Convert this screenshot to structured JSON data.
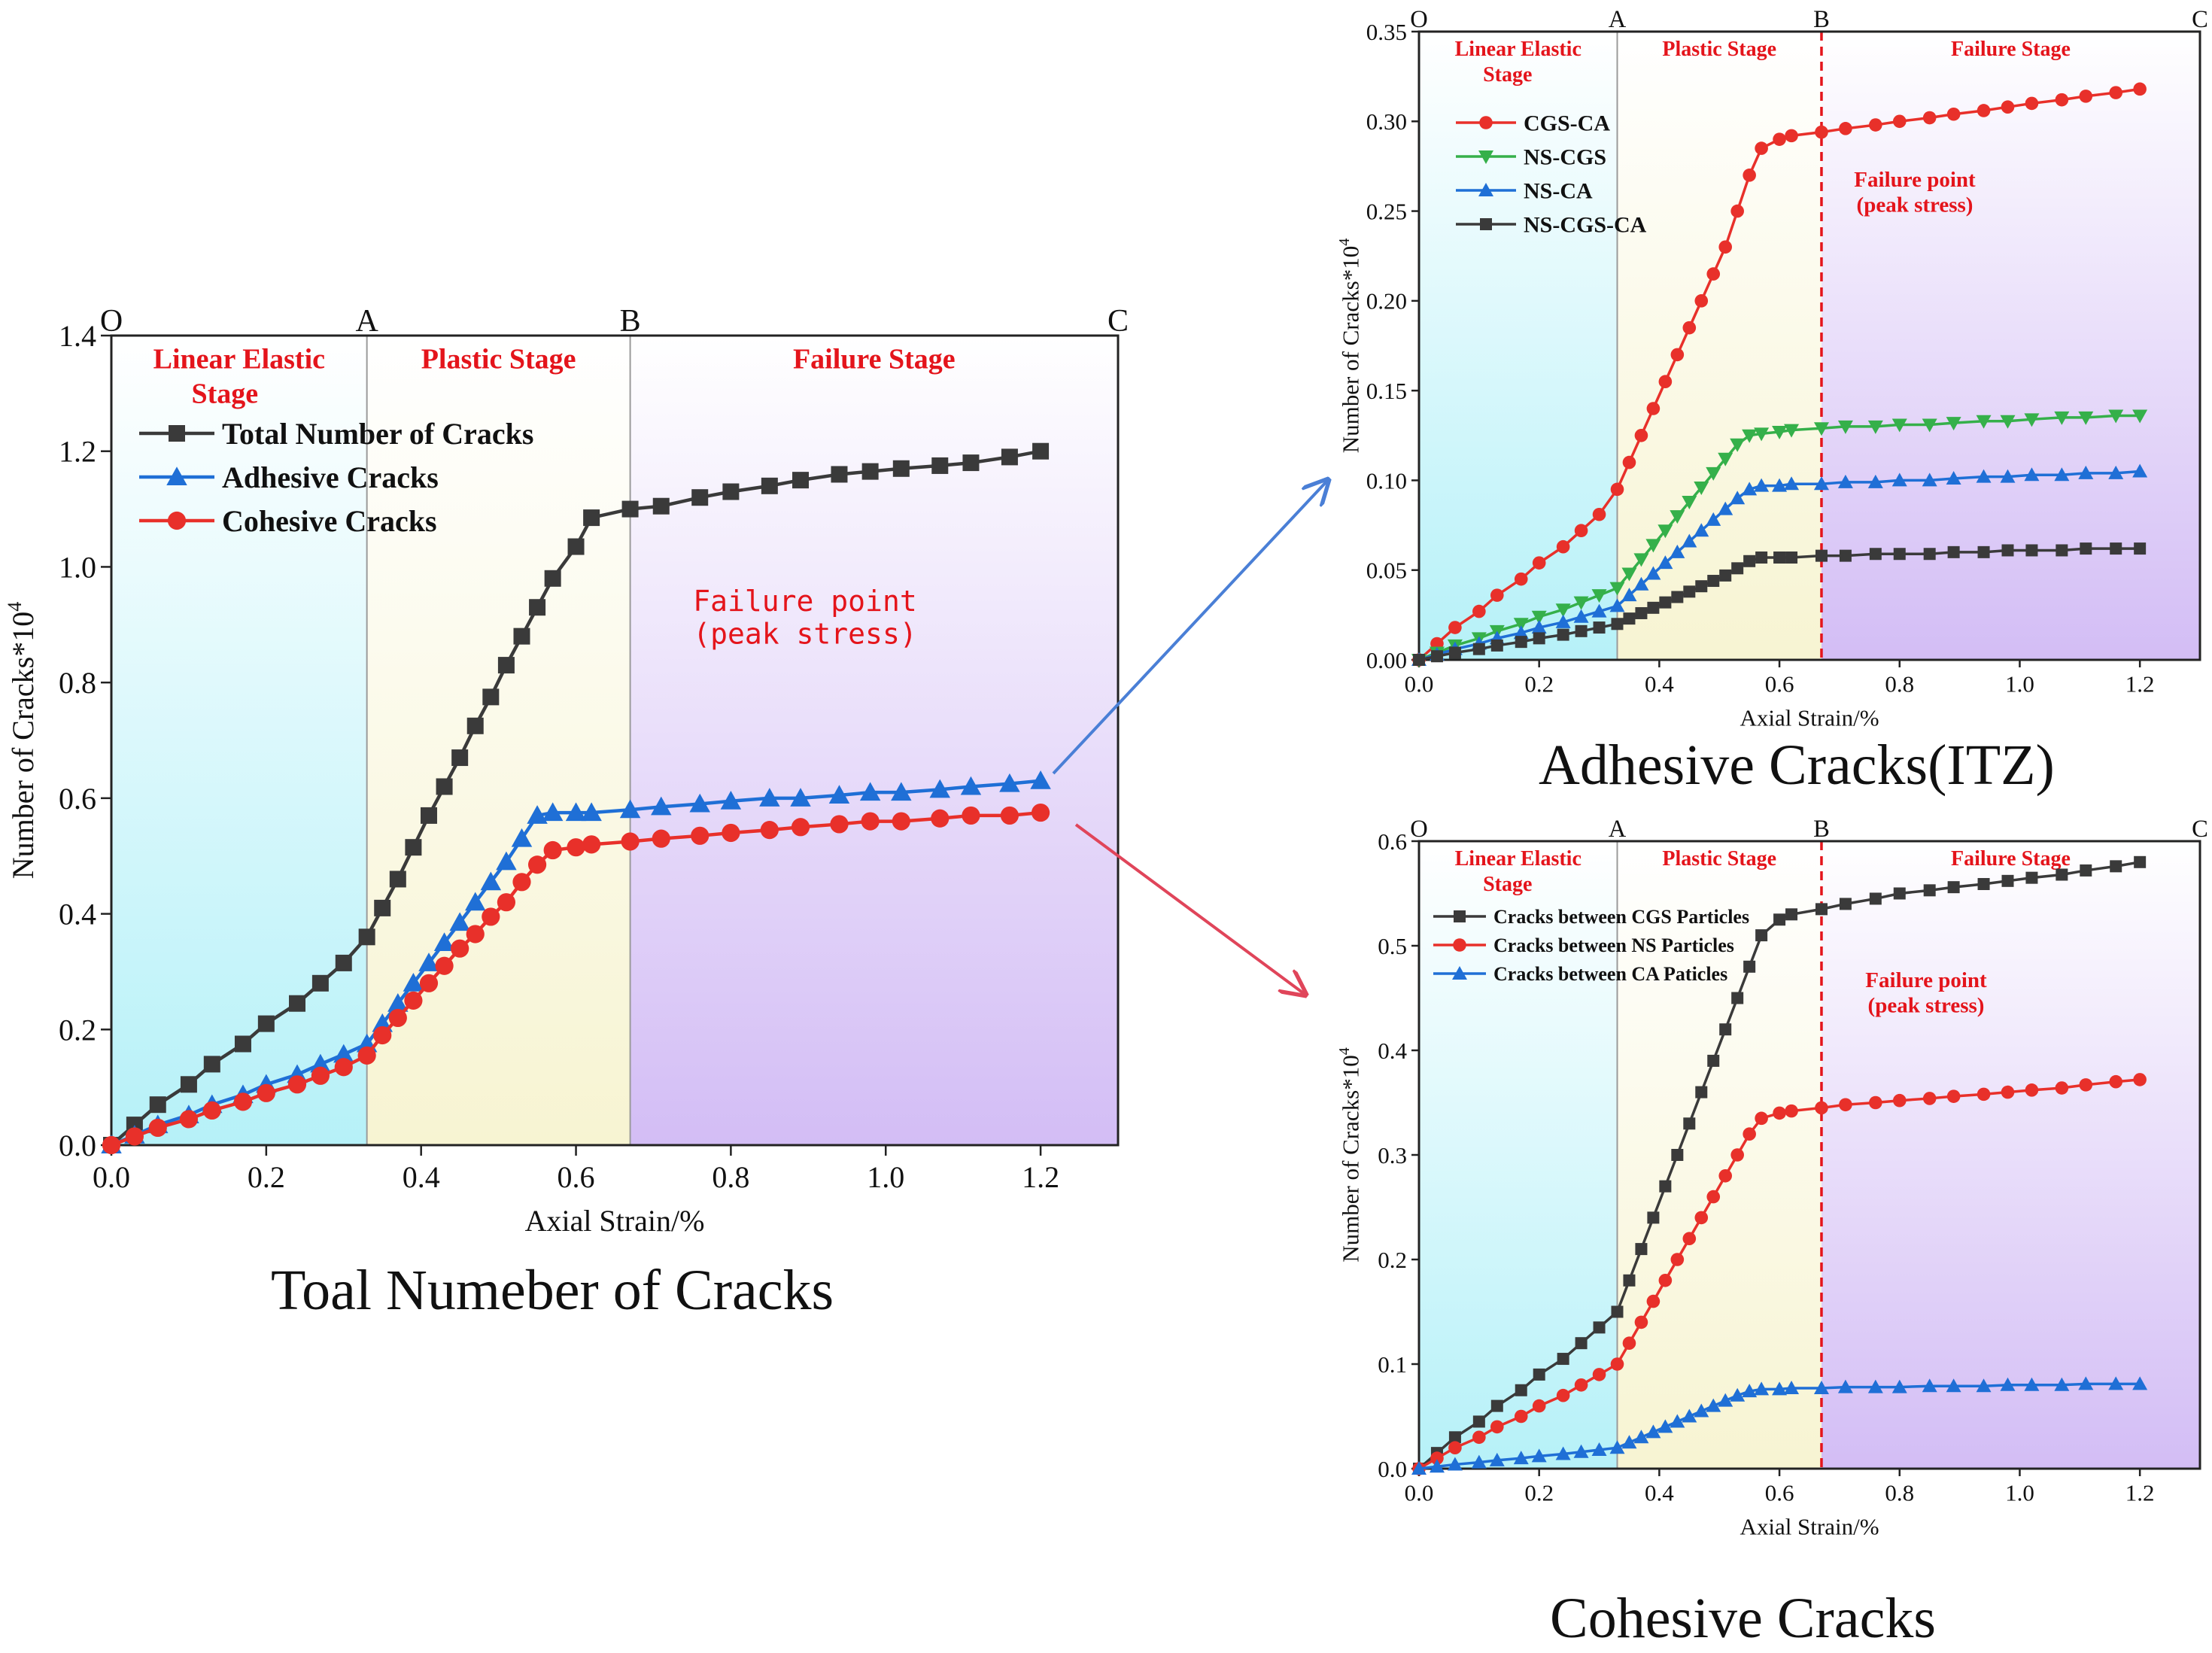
{
  "x": [
    0.0,
    0.03,
    0.06,
    0.1,
    0.13,
    0.17,
    0.2,
    0.24,
    0.27,
    0.3,
    0.33,
    0.35,
    0.37,
    0.39,
    0.41,
    0.43,
    0.45,
    0.47,
    0.49,
    0.51,
    0.53,
    0.55,
    0.57,
    0.6,
    0.62,
    0.67,
    0.71,
    0.76,
    0.8,
    0.85,
    0.89,
    0.94,
    0.98,
    1.02,
    1.07,
    1.11,
    1.16,
    1.2
  ],
  "colors": {
    "black": "#3a3a3a",
    "blue": "#1f6fd6",
    "red": "#e8302a",
    "green": "#35b04a",
    "stageRed": "#e4141b",
    "arrowBlue": "#4a7fd6",
    "arrowRed": "#e0455a"
  },
  "chart_data": [
    {
      "type": "line",
      "id": "main",
      "title": "",
      "xlabel": "Axial Strain/%",
      "ylabel": "Number of Cracks*10^4",
      "xlim": [
        0,
        1.3
      ],
      "ylim": [
        0,
        1.4
      ],
      "xticks": [
        "0.0",
        "0.2",
        "0.4",
        "0.6",
        "0.8",
        "1.0",
        "1.2"
      ],
      "yticks": [
        "0.0",
        "0.2",
        "0.4",
        "0.6",
        "0.8",
        "1.0",
        "1.2",
        "1.4"
      ],
      "stage_letters": [
        "O",
        "A",
        "B",
        "C"
      ],
      "stage_bounds": [
        0,
        0.33,
        0.67,
        1.3
      ],
      "stages": [
        "Linear Elastic",
        "Stage",
        "Plastic Stage",
        "Failure Stage"
      ],
      "annotation": [
        "Failure point",
        "(peak stress)"
      ],
      "series": [
        {
          "name": "Total Number of Cracks",
          "marker": "square",
          "color": "#3a3a3a",
          "values": [
            0,
            0.035,
            0.07,
            0.105,
            0.14,
            0.175,
            0.21,
            0.245,
            0.28,
            0.315,
            0.36,
            0.41,
            0.46,
            0.515,
            0.57,
            0.62,
            0.67,
            0.725,
            0.775,
            0.83,
            0.88,
            0.93,
            0.98,
            1.035,
            1.085,
            1.1,
            1.105,
            1.12,
            1.13,
            1.14,
            1.15,
            1.16,
            1.165,
            1.17,
            1.175,
            1.18,
            1.19,
            1.2
          ]
        },
        {
          "name": "Adhesive Cracks",
          "marker": "triangle",
          "color": "#1f6fd6",
          "values": [
            0,
            0.017,
            0.035,
            0.052,
            0.07,
            0.087,
            0.105,
            0.122,
            0.14,
            0.157,
            0.175,
            0.21,
            0.245,
            0.28,
            0.315,
            0.35,
            0.385,
            0.42,
            0.455,
            0.49,
            0.53,
            0.57,
            0.575,
            0.575,
            0.575,
            0.58,
            0.585,
            0.59,
            0.595,
            0.6,
            0.6,
            0.605,
            0.61,
            0.61,
            0.615,
            0.62,
            0.625,
            0.63
          ]
        },
        {
          "name": "Cohesive Cracks",
          "marker": "circle",
          "color": "#e8302a",
          "values": [
            0,
            0.015,
            0.03,
            0.045,
            0.06,
            0.075,
            0.09,
            0.105,
            0.12,
            0.135,
            0.155,
            0.19,
            0.22,
            0.25,
            0.28,
            0.31,
            0.34,
            0.365,
            0.395,
            0.42,
            0.455,
            0.485,
            0.51,
            0.515,
            0.52,
            0.525,
            0.53,
            0.535,
            0.54,
            0.545,
            0.55,
            0.555,
            0.56,
            0.56,
            0.565,
            0.57,
            0.57,
            0.575
          ]
        }
      ]
    },
    {
      "type": "line",
      "id": "adhesive",
      "title": "Adhesive Cracks(ITZ)",
      "xlabel": "Axial Strain/%",
      "ylabel": "Number of Cracks*10^4",
      "xlim": [
        0,
        1.3
      ],
      "ylim": [
        0,
        0.35
      ],
      "xticks": [
        "0.0",
        "0.2",
        "0.4",
        "0.6",
        "0.8",
        "1.0",
        "1.2"
      ],
      "yticks": [
        "0.00",
        "0.05",
        "0.10",
        "0.15",
        "0.20",
        "0.25",
        "0.30",
        "0.35"
      ],
      "stage_letters": [
        "O",
        "A",
        "B",
        "C"
      ],
      "stage_bounds": [
        0,
        0.33,
        0.67,
        1.3
      ],
      "stages": [
        "Linear Elastic",
        "Stage",
        "Plastic Stage",
        "Failure Stage"
      ],
      "annotation": [
        "Failure point",
        "(peak stress)"
      ],
      "series": [
        {
          "name": "CGS-CA",
          "marker": "circle",
          "color": "#e8302a",
          "values": [
            0,
            0.009,
            0.018,
            0.027,
            0.036,
            0.045,
            0.054,
            0.063,
            0.072,
            0.081,
            0.095,
            0.11,
            0.125,
            0.14,
            0.155,
            0.17,
            0.185,
            0.2,
            0.215,
            0.23,
            0.25,
            0.27,
            0.285,
            0.29,
            0.292,
            0.294,
            0.296,
            0.298,
            0.3,
            0.302,
            0.304,
            0.306,
            0.308,
            0.31,
            0.312,
            0.314,
            0.316,
            0.318
          ]
        },
        {
          "name": "NS-CGS",
          "marker": "triangle-down",
          "color": "#35b04a",
          "values": [
            0,
            0.004,
            0.008,
            0.012,
            0.016,
            0.02,
            0.024,
            0.028,
            0.032,
            0.036,
            0.04,
            0.048,
            0.056,
            0.064,
            0.072,
            0.08,
            0.088,
            0.096,
            0.104,
            0.112,
            0.12,
            0.125,
            0.126,
            0.127,
            0.128,
            0.129,
            0.13,
            0.13,
            0.131,
            0.131,
            0.132,
            0.133,
            0.133,
            0.134,
            0.135,
            0.135,
            0.136,
            0.136
          ]
        },
        {
          "name": "NS-CA",
          "marker": "triangle",
          "color": "#1f6fd6",
          "values": [
            0,
            0.003,
            0.006,
            0.009,
            0.012,
            0.015,
            0.018,
            0.021,
            0.024,
            0.027,
            0.03,
            0.036,
            0.042,
            0.048,
            0.054,
            0.06,
            0.066,
            0.072,
            0.078,
            0.084,
            0.09,
            0.095,
            0.097,
            0.097,
            0.098,
            0.098,
            0.099,
            0.099,
            0.1,
            0.1,
            0.101,
            0.102,
            0.102,
            0.103,
            0.103,
            0.104,
            0.104,
            0.105
          ]
        },
        {
          "name": "NS-CGS-CA",
          "marker": "square",
          "color": "#3a3a3a",
          "values": [
            0,
            0.002,
            0.004,
            0.006,
            0.008,
            0.01,
            0.012,
            0.014,
            0.016,
            0.018,
            0.02,
            0.023,
            0.026,
            0.029,
            0.032,
            0.035,
            0.038,
            0.041,
            0.044,
            0.047,
            0.051,
            0.055,
            0.057,
            0.057,
            0.057,
            0.058,
            0.058,
            0.059,
            0.059,
            0.059,
            0.06,
            0.06,
            0.061,
            0.061,
            0.061,
            0.062,
            0.062,
            0.062
          ]
        }
      ]
    },
    {
      "type": "line",
      "id": "cohesive",
      "title": "Cohesive Cracks",
      "xlabel": "Axial Strain/%",
      "ylabel": "Number of Cracks*10^4",
      "xlim": [
        0,
        1.3
      ],
      "ylim": [
        0,
        0.6
      ],
      "xticks": [
        "0.0",
        "0.2",
        "0.4",
        "0.6",
        "0.8",
        "1.0",
        "1.2"
      ],
      "yticks": [
        "0.0",
        "0.1",
        "0.2",
        "0.3",
        "0.4",
        "0.5",
        "0.6"
      ],
      "stage_letters": [
        "O",
        "A",
        "B",
        "C"
      ],
      "stage_bounds": [
        0,
        0.33,
        0.67,
        1.3
      ],
      "stages": [
        "Linear Elastic",
        "Stage",
        "Plastic Stage",
        "Failure Stage"
      ],
      "annotation": [
        "Failure point",
        "(peak stress)"
      ],
      "series": [
        {
          "name": "Cracks between CGS Particles",
          "marker": "square",
          "color": "#3a3a3a",
          "values": [
            0,
            0.015,
            0.03,
            0.045,
            0.06,
            0.075,
            0.09,
            0.105,
            0.12,
            0.135,
            0.15,
            0.18,
            0.21,
            0.24,
            0.27,
            0.3,
            0.33,
            0.36,
            0.39,
            0.42,
            0.45,
            0.48,
            0.51,
            0.525,
            0.53,
            0.535,
            0.54,
            0.545,
            0.55,
            0.553,
            0.556,
            0.559,
            0.562,
            0.565,
            0.568,
            0.572,
            0.576,
            0.58
          ]
        },
        {
          "name": "Cracks between NS Particles",
          "marker": "circle",
          "color": "#e8302a",
          "values": [
            0,
            0.01,
            0.02,
            0.03,
            0.04,
            0.05,
            0.06,
            0.07,
            0.08,
            0.09,
            0.1,
            0.12,
            0.14,
            0.16,
            0.18,
            0.2,
            0.22,
            0.24,
            0.26,
            0.28,
            0.3,
            0.32,
            0.335,
            0.34,
            0.342,
            0.345,
            0.348,
            0.35,
            0.352,
            0.354,
            0.356,
            0.358,
            0.36,
            0.362,
            0.364,
            0.367,
            0.37,
            0.372
          ]
        },
        {
          "name": "Cracks between CA Paticles",
          "marker": "triangle",
          "color": "#1f6fd6",
          "values": [
            0,
            0.002,
            0.004,
            0.006,
            0.008,
            0.01,
            0.012,
            0.014,
            0.016,
            0.018,
            0.02,
            0.025,
            0.03,
            0.035,
            0.04,
            0.045,
            0.05,
            0.055,
            0.06,
            0.065,
            0.07,
            0.074,
            0.076,
            0.076,
            0.077,
            0.077,
            0.078,
            0.078,
            0.078,
            0.079,
            0.079,
            0.079,
            0.08,
            0.08,
            0.08,
            0.081,
            0.081,
            0.081
          ]
        }
      ]
    }
  ],
  "captions": {
    "main": "Toal Numeber of Cracks",
    "adhesive": "Adhesive Cracks(ITZ)",
    "cohesive": "Cohesive Cracks"
  }
}
